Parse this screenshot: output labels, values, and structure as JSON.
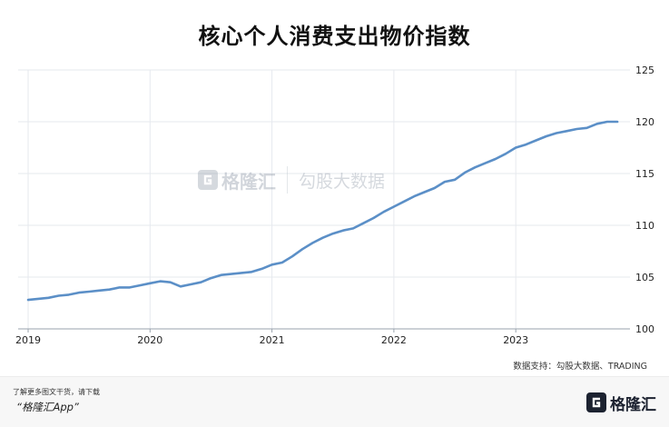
{
  "chart_data": {
    "type": "line",
    "title": "核心个人消费支出物价指数",
    "xlabel": "",
    "ylabel": "",
    "x_ticks": [
      "2019",
      "2020",
      "2021",
      "2022",
      "2023"
    ],
    "y_ticks": [
      100,
      105,
      110,
      115,
      120,
      125
    ],
    "ylim": [
      100,
      125
    ],
    "xlim": [
      "2019-01",
      "2023-11"
    ],
    "grid": true,
    "line_color": "#5b8fc7",
    "series": [
      {
        "name": "",
        "x": [
          "2019-01",
          "2019-02",
          "2019-03",
          "2019-04",
          "2019-05",
          "2019-06",
          "2019-07",
          "2019-08",
          "2019-09",
          "2019-10",
          "2019-11",
          "2019-12",
          "2020-01",
          "2020-02",
          "2020-03",
          "2020-04",
          "2020-05",
          "2020-06",
          "2020-07",
          "2020-08",
          "2020-09",
          "2020-10",
          "2020-11",
          "2020-12",
          "2021-01",
          "2021-02",
          "2021-03",
          "2021-04",
          "2021-05",
          "2021-06",
          "2021-07",
          "2021-08",
          "2021-09",
          "2021-10",
          "2021-11",
          "2021-12",
          "2022-01",
          "2022-02",
          "2022-03",
          "2022-04",
          "2022-05",
          "2022-06",
          "2022-07",
          "2022-08",
          "2022-09",
          "2022-10",
          "2022-11",
          "2022-12",
          "2023-01",
          "2023-02",
          "2023-03",
          "2023-04",
          "2023-05",
          "2023-06",
          "2023-07",
          "2023-08",
          "2023-09",
          "2023-10",
          "2023-11"
        ],
        "values": [
          102.8,
          102.9,
          103.0,
          103.2,
          103.3,
          103.5,
          103.6,
          103.7,
          103.8,
          104.0,
          104.0,
          104.2,
          104.4,
          104.6,
          104.5,
          104.1,
          104.3,
          104.5,
          104.9,
          105.2,
          105.3,
          105.4,
          105.5,
          105.8,
          106.2,
          106.4,
          107.0,
          107.7,
          108.3,
          108.8,
          109.2,
          109.5,
          109.7,
          110.2,
          110.7,
          111.3,
          111.8,
          112.3,
          112.8,
          113.2,
          113.6,
          114.2,
          114.4,
          115.1,
          115.6,
          116.0,
          116.4,
          116.9,
          117.5,
          117.8,
          118.2,
          118.6,
          118.9,
          119.1,
          119.3,
          119.4,
          119.8,
          120.0,
          120.0
        ]
      }
    ]
  },
  "source": "数据支持：勾股大数据、TRADING",
  "footer": {
    "note": "了解更多图文干货，请下载",
    "app": "“格隆汇App”",
    "brand": "格隆汇"
  },
  "watermark": {
    "brand": "格隆汇",
    "name": "勾股大数据"
  },
  "colors": {
    "line": "#5b8fc7",
    "grid": "#e6e9ee",
    "axis_text": "#222222"
  }
}
